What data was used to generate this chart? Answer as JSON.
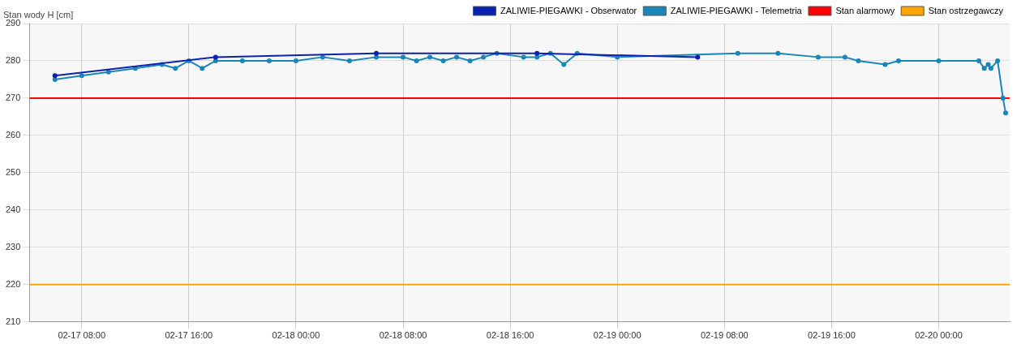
{
  "chart_data": {
    "type": "line",
    "ylabel": "Stan wody H [cm]",
    "xlim": [
      "--02-17T04:06",
      "--02-20T05:18"
    ],
    "xticks": [
      {
        "value": "--02-17T08:00",
        "label": "02-17 08:00"
      },
      {
        "value": "--02-17T16:00",
        "label": "02-17 16:00"
      },
      {
        "value": "--02-18T00:00",
        "label": "02-18 00:00"
      },
      {
        "value": "--02-18T08:00",
        "label": "02-18 08:00"
      },
      {
        "value": "--02-18T16:00",
        "label": "02-18 16:00"
      },
      {
        "value": "--02-19T00:00",
        "label": "02-19 00:00"
      },
      {
        "value": "--02-19T08:00",
        "label": "02-19 08:00"
      },
      {
        "value": "--02-19T16:00",
        "label": "02-19 16:00"
      },
      {
        "value": "--02-20T00:00",
        "label": "02-20 00:00"
      }
    ],
    "ylim": [
      210,
      290
    ],
    "yticks": [
      210,
      220,
      230,
      240,
      250,
      260,
      270,
      280,
      290
    ],
    "grid": true,
    "legend": "top right",
    "marker": "circle",
    "line_style": "solid",
    "series": [
      {
        "name": "ZALIWIE-PIEGAWKI - Obserwator",
        "color": "#0b22b0",
        "x": [
          "--02-17T06:00",
          "--02-17T18:00",
          "--02-18T06:00",
          "--02-18T18:00",
          "--02-19T06:00"
        ],
        "values": [
          276,
          281,
          282,
          282,
          281
        ]
      },
      {
        "name": "ZALIWIE-PIEGAWKI - Telemetria",
        "color": "#1a86b8",
        "x": [
          "--02-17T06:00",
          "--02-17T08:00",
          "--02-17T10:00",
          "--02-17T12:00",
          "--02-17T14:00",
          "--02-17T15:00",
          "--02-17T16:00",
          "--02-17T17:00",
          "--02-17T18:00",
          "--02-17T20:00",
          "--02-17T22:00",
          "--02-18T00:00",
          "--02-18T02:00",
          "--02-18T04:00",
          "--02-18T06:00",
          "--02-18T08:00",
          "--02-18T09:00",
          "--02-18T10:00",
          "--02-18T11:00",
          "--02-18T12:00",
          "--02-18T13:00",
          "--02-18T14:00",
          "--02-18T15:00",
          "--02-18T17:00",
          "--02-18T18:00",
          "--02-18T19:00",
          "--02-18T20:00",
          "--02-18T21:00",
          "--02-19T00:00",
          "--02-19T09:00",
          "--02-19T12:00",
          "--02-19T15:00",
          "--02-19T17:00",
          "--02-19T18:00",
          "--02-19T20:00",
          "--02-19T21:00",
          "--02-20T00:00",
          "--02-20T03:00",
          "--02-20T03:24",
          "--02-20T03:42",
          "--02-20T03:54",
          "--02-20T04:24",
          "--02-20T04:48",
          "--02-20T05:00"
        ],
        "values": [
          275,
          276,
          277,
          278,
          279,
          278,
          280,
          278,
          280,
          280,
          280,
          280,
          281,
          280,
          281,
          281,
          280,
          281,
          280,
          281,
          280,
          281,
          282,
          281,
          281,
          282,
          279,
          282,
          281,
          282,
          282,
          281,
          281,
          280,
          279,
          280,
          280,
          280,
          278,
          279,
          278,
          280,
          270,
          266
        ]
      }
    ],
    "ref_lines": [
      {
        "axis": "y",
        "value": 270,
        "label": "Stan alarmowy",
        "color": "#ff0000"
      },
      {
        "axis": "y",
        "value": 220,
        "label": "Stan ostrzegawczy",
        "color": "#ffa500"
      }
    ]
  }
}
